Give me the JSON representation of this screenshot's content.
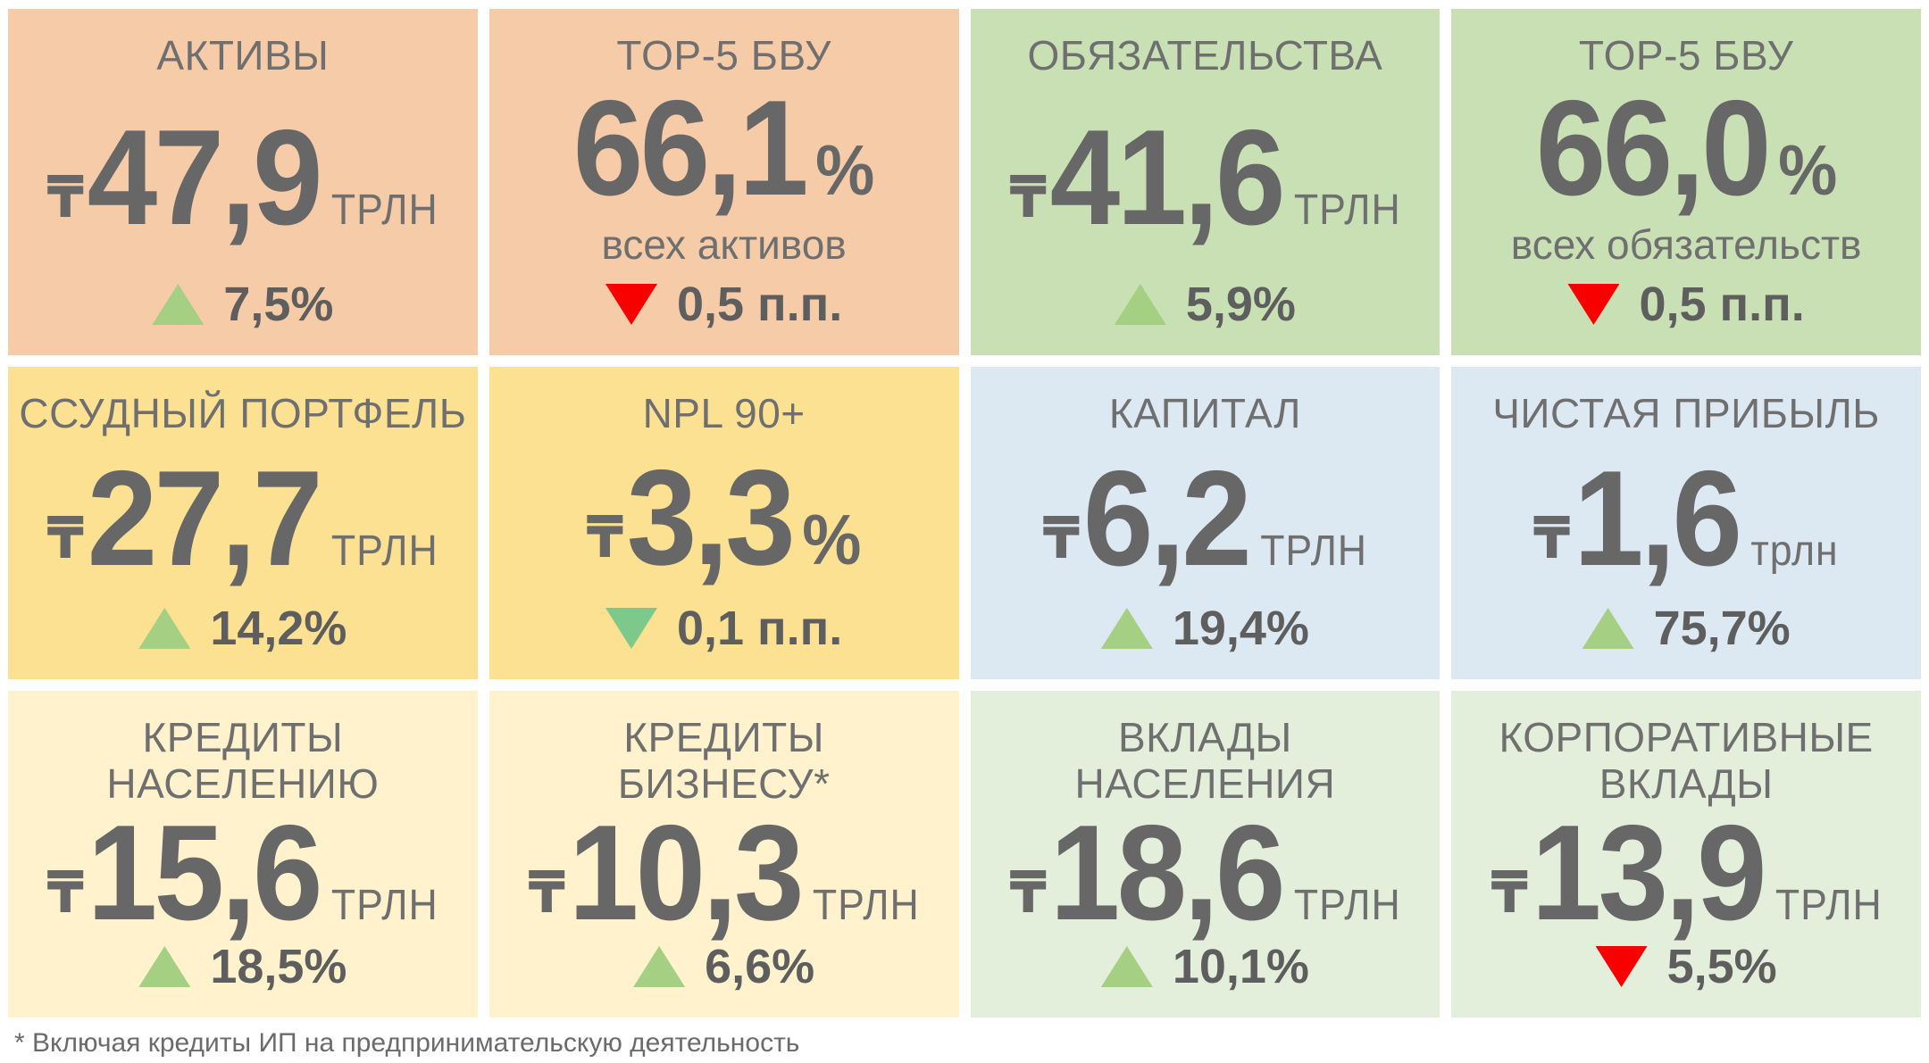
{
  "page": {
    "background": "#FFFFFF",
    "footnote": "* Включая кредиты ИП на предпринимательскую деятельность"
  },
  "colors": {
    "tile_salmon": "#F6CBA7",
    "tile_green": "#C8E0B4",
    "tile_gold": "#FCE192",
    "tile_blue": "#DCE8F2",
    "tile_cream": "#FFF2CC",
    "tile_pale_green": "#E3EFDB",
    "text_gray": "#6F6F6F",
    "number_gray": "#676767",
    "arrow_up_green": "#A5CF82",
    "arrow_down_green": "#7DC98B",
    "arrow_down_red": "#F80000"
  },
  "tiles": [
    {
      "bg": "#F6CBA7",
      "title": "АКТИВЫ",
      "prefix": "₸",
      "value": "47,9",
      "unit": "ТРЛН",
      "change": {
        "dir": "up",
        "color": "#A5CF82",
        "label": "7,5%"
      }
    },
    {
      "bg": "#F6CBA7",
      "title": "TOP-5 БВУ",
      "value": "66,1",
      "unit": "%",
      "caption": "всех активов",
      "change": {
        "dir": "down",
        "color": "#F80000",
        "label": "0,5 п.п."
      }
    },
    {
      "bg": "#C8E0B4",
      "title": "ОБЯЗАТЕЛЬСТВА",
      "prefix": "₸",
      "value": "41,6",
      "unit": "ТРЛН",
      "change": {
        "dir": "up",
        "color": "#A5CF82",
        "label": "5,9%"
      }
    },
    {
      "bg": "#C8E0B4",
      "title": "TOP-5 БВУ",
      "value": "66,0",
      "unit": "%",
      "caption": "всех обязательств",
      "change": {
        "dir": "down",
        "color": "#F80000",
        "label": "0,5 п.п."
      }
    },
    {
      "bg": "#FCE192",
      "title": "ССУДНЫЙ ПОРТФЕЛЬ",
      "prefix": "₸",
      "value": "27,7",
      "unit": "ТРЛН",
      "change": {
        "dir": "up",
        "color": "#A5CF82",
        "label": "14,2%"
      }
    },
    {
      "bg": "#FCE192",
      "title": "NPL 90+",
      "prefix": "₸",
      "value": "3,3",
      "unit": "%",
      "change": {
        "dir": "down",
        "color": "#7DC98B",
        "label": "0,1 п.п."
      }
    },
    {
      "bg": "#DCE8F2",
      "title": "КАПИТАЛ",
      "prefix": "₸",
      "value": "6,2",
      "unit": "ТРЛН",
      "change": {
        "dir": "up",
        "color": "#A5CF82",
        "label": "19,4%"
      }
    },
    {
      "bg": "#DCE8F2",
      "title": "ЧИСТАЯ ПРИБЫЛЬ",
      "prefix": "₸",
      "value": "1,6",
      "unit": "трлн",
      "change": {
        "dir": "up",
        "color": "#A5CF82",
        "label": "75,7%"
      }
    },
    {
      "bg": "#FFF2CC",
      "title": "КРЕДИТЫ\nНАСЕЛЕНИЮ",
      "prefix": "₸",
      "value": "15,6",
      "unit": "ТРЛН",
      "change": {
        "dir": "up",
        "color": "#A5CF82",
        "label": "18,5%"
      }
    },
    {
      "bg": "#FFF2CC",
      "title": "КРЕДИТЫ\nБИЗНЕСУ*",
      "prefix": "₸",
      "value": "10,3",
      "unit": "ТРЛН",
      "change": {
        "dir": "up",
        "color": "#A5CF82",
        "label": "6,6%"
      }
    },
    {
      "bg": "#E3EFDB",
      "title": "ВКЛАДЫ\nНАСЕЛЕНИЯ",
      "prefix": "₸",
      "value": "18,6",
      "unit": "ТРЛН",
      "change": {
        "dir": "up",
        "color": "#A5CF82",
        "label": "10,1%"
      }
    },
    {
      "bg": "#E3EFDB",
      "title": "КОРПОРАТИВНЫЕ\nВКЛАДЫ",
      "prefix": "₸",
      "value": "13,9",
      "unit": "ТРЛН",
      "change": {
        "dir": "down",
        "color": "#F80000",
        "label": "5,5%"
      }
    }
  ],
  "chart_data": {
    "type": "table",
    "indicators": [
      {
        "name": "АКТИВЫ",
        "value": 47.9,
        "unit": "трлн ₸",
        "change": 7.5,
        "change_unit": "%",
        "direction": "up"
      },
      {
        "name": "TOP-5 БВУ (доля всех активов)",
        "value": 66.1,
        "unit": "%",
        "change": -0.5,
        "change_unit": "п.п.",
        "direction": "down"
      },
      {
        "name": "ОБЯЗАТЕЛЬСТВА",
        "value": 41.6,
        "unit": "трлн ₸",
        "change": 5.9,
        "change_unit": "%",
        "direction": "up"
      },
      {
        "name": "TOP-5 БВУ (доля всех обязательств)",
        "value": 66.0,
        "unit": "%",
        "change": -0.5,
        "change_unit": "п.п.",
        "direction": "down"
      },
      {
        "name": "ССУДНЫЙ ПОРТФЕЛЬ",
        "value": 27.7,
        "unit": "трлн ₸",
        "change": 14.2,
        "change_unit": "%",
        "direction": "up"
      },
      {
        "name": "NPL 90+",
        "value": 3.3,
        "unit": "%",
        "change": -0.1,
        "change_unit": "п.п.",
        "direction": "down"
      },
      {
        "name": "КАПИТАЛ",
        "value": 6.2,
        "unit": "трлн ₸",
        "change": 19.4,
        "change_unit": "%",
        "direction": "up"
      },
      {
        "name": "ЧИСТАЯ ПРИБЫЛЬ",
        "value": 1.6,
        "unit": "трлн ₸",
        "change": 75.7,
        "change_unit": "%",
        "direction": "up"
      },
      {
        "name": "КРЕДИТЫ НАСЕЛЕНИЮ",
        "value": 15.6,
        "unit": "трлн ₸",
        "change": 18.5,
        "change_unit": "%",
        "direction": "up"
      },
      {
        "name": "КРЕДИТЫ БИЗНЕСУ*",
        "value": 10.3,
        "unit": "трлн ₸",
        "change": 6.6,
        "change_unit": "%",
        "direction": "up"
      },
      {
        "name": "ВКЛАДЫ НАСЕЛЕНИЯ",
        "value": 18.6,
        "unit": "трлн ₸",
        "change": 10.1,
        "change_unit": "%",
        "direction": "up"
      },
      {
        "name": "КОРПОРАТИВНЫЕ ВКЛАДЫ",
        "value": 13.9,
        "unit": "трлн ₸",
        "change": -5.5,
        "change_unit": "%",
        "direction": "down"
      }
    ]
  }
}
